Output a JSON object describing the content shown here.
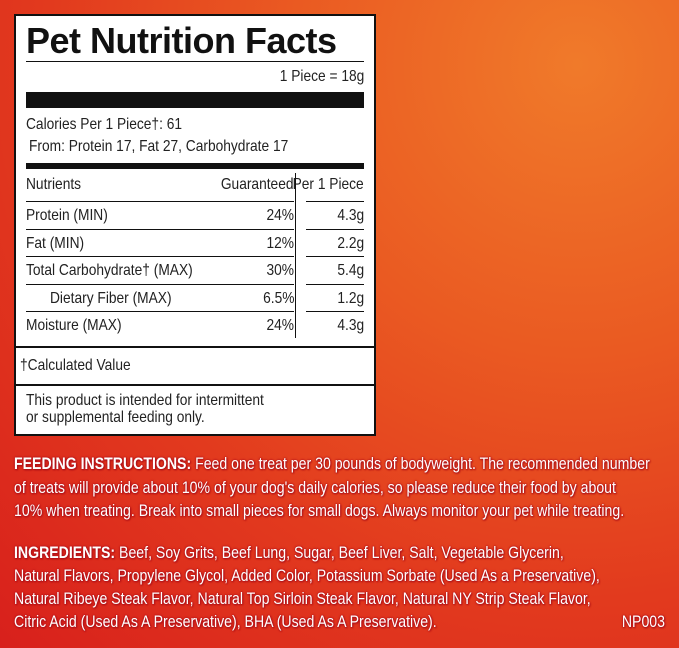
{
  "label": {
    "title": "Pet Nutrition Facts",
    "serving": "1 Piece = 18g",
    "calories": "Calories Per 1 Piece†: 61",
    "calories_from": "From: Protein 17, Fat 27, Carbohydrate 17",
    "headers": {
      "nutrients": "Nutrients",
      "guaranteed": "Guaranteed",
      "per_piece": "Per 1 Piece"
    },
    "rows": [
      {
        "name": "Protein (MIN)",
        "guaranteed": "24%",
        "per_piece": "4.3g"
      },
      {
        "name": "Fat (MIN)",
        "guaranteed": "12%",
        "per_piece": "2.2g"
      },
      {
        "name": "Total Carbohydrate† (MAX)",
        "guaranteed": "30%",
        "per_piece": "5.4g"
      },
      {
        "name": "Dietary Fiber (MAX)",
        "guaranteed": "6.5%",
        "per_piece": "1.2g"
      },
      {
        "name": "Moisture (MAX)",
        "guaranteed": "24%",
        "per_piece": "4.3g"
      }
    ],
    "footnote": "†Calculated Value",
    "notice": [
      "This product is intended for intermittent",
      "or supplemental feeding only."
    ]
  },
  "feeding": {
    "heading": "FEEDING INSTRUCTIONS:",
    "lines": [
      " Feed one treat per 30 pounds of bodyweight. The recommended number",
      "of treats will provide about 10% of your dog's daily calories, so please reduce their food by about",
      "10% when treating. Break into small pieces for small dogs. Always monitor your pet while treating."
    ]
  },
  "ingredients": {
    "heading": "INGREDIENTS:",
    "lines": [
      " Beef, Soy Grits, Beef Lung, Sugar, Beef Liver, Salt, Vegetable Glycerin,",
      "Natural Flavors, Propylene Glycol, Added Color, Potassium Sorbate (Used As a Preservative),",
      "Natural Ribeye Steak Flavor, Natural Top Sirloin Steak Flavor, Natural NY Strip Steak Flavor,",
      "Citric Acid (Used As A Preservative), BHA (Used As A Preservative)."
    ],
    "code": "NP003"
  }
}
